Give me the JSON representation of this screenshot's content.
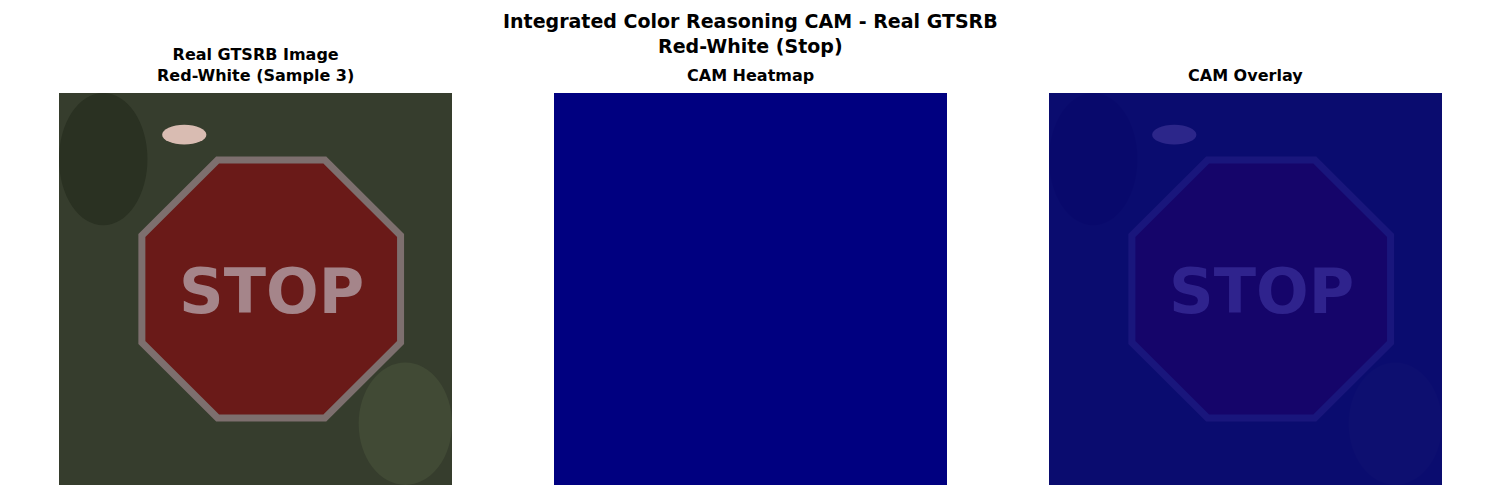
{
  "title": [
    "Integrated Color Reasoning CAM - Real GTSRB",
    "Red-White (Stop)"
  ],
  "chart_data": [
    {
      "type": "image",
      "title": [
        "Real GTSRB Image",
        "Red-White (Sample 3)"
      ],
      "sign_text": "STOP",
      "tick_labels": false
    },
    {
      "type": "heatmap",
      "title": [
        "CAM Heatmap"
      ],
      "zlim": [
        0,
        1
      ],
      "tick_labels": false,
      "cells": [
        [
          0,
          0,
          0,
          0,
          0,
          0,
          0,
          0
        ],
        [
          0,
          0,
          0,
          0,
          0,
          0,
          0,
          0
        ],
        [
          0,
          0,
          0,
          0,
          0,
          0,
          0,
          0
        ],
        [
          0,
          0,
          0,
          0,
          0,
          0,
          0,
          0
        ],
        [
          0,
          0,
          0,
          0,
          0,
          0,
          0,
          0
        ],
        [
          0,
          0,
          0,
          0,
          0,
          0,
          0,
          0
        ],
        [
          0,
          0,
          0,
          0,
          0,
          0,
          0,
          0
        ],
        [
          0,
          0,
          0,
          0,
          0,
          0,
          0,
          0
        ]
      ]
    },
    {
      "type": "overlay",
      "title": [
        "CAM Overlay"
      ],
      "zlim": [
        0,
        1
      ],
      "sign_text": "STOP",
      "tick_labels": false,
      "cells": [
        [
          0,
          0,
          0,
          0,
          0,
          0,
          0,
          0
        ],
        [
          0,
          0,
          0,
          0,
          0,
          0,
          0,
          0
        ],
        [
          0,
          0,
          0,
          0,
          0,
          0,
          0,
          0
        ],
        [
          0,
          0,
          0,
          0,
          0,
          0,
          0,
          0
        ],
        [
          0,
          0,
          0,
          0,
          0,
          0,
          0,
          0
        ],
        [
          0,
          0,
          0,
          0,
          0,
          0,
          0,
          0
        ],
        [
          0,
          0,
          0,
          0,
          0,
          0,
          0,
          0
        ],
        [
          0,
          0,
          0,
          0,
          0,
          0,
          0,
          0
        ]
      ]
    }
  ]
}
